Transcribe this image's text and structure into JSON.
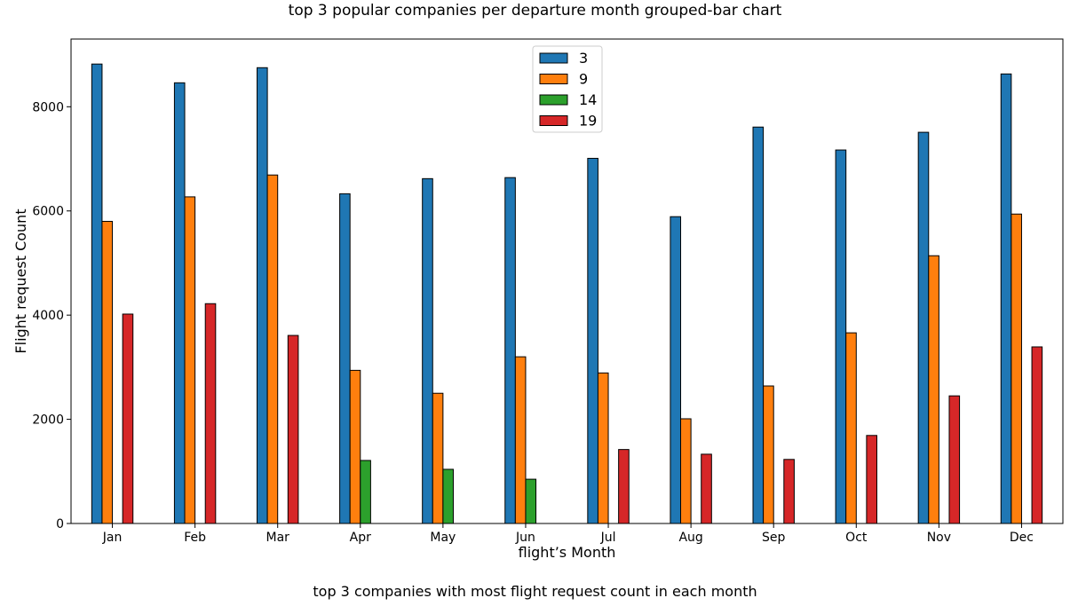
{
  "chart_data": {
    "type": "bar",
    "title": "top 3 popular companies per departure month grouped-bar chart",
    "caption": "top 3 companies with most flight request count in each month",
    "xlabel": "flight’s Month",
    "ylabel": "Flight request Count",
    "ylim": [
      0,
      9300
    ],
    "yticks": [
      "0",
      "2000",
      "4000",
      "6000",
      "8000"
    ],
    "ytick_values": [
      0,
      2000,
      4000,
      6000,
      8000
    ],
    "categories": [
      "Jan",
      "Feb",
      "Mar",
      "Apr",
      "May",
      "Jun",
      "Jul",
      "Aug",
      "Sep",
      "Oct",
      "Nov",
      "Dec"
    ],
    "legend_position": "top-center",
    "grid": false,
    "series": [
      {
        "name": "3",
        "color": "#1f77b4",
        "values": [
          8820,
          8460,
          8750,
          6330,
          6620,
          6640,
          7010,
          5890,
          7610,
          7170,
          7510,
          8630
        ]
      },
      {
        "name": "9",
        "color": "#ff7f0e",
        "values": [
          5800,
          6270,
          6690,
          2940,
          2500,
          3200,
          2890,
          2010,
          2640,
          3660,
          5140,
          5940
        ]
      },
      {
        "name": "14",
        "color": "#2ca02c",
        "values": [
          null,
          null,
          null,
          1210,
          1040,
          850,
          null,
          null,
          null,
          null,
          null,
          null
        ]
      },
      {
        "name": "19",
        "color": "#d62728",
        "values": [
          4020,
          4220,
          3610,
          null,
          null,
          null,
          1420,
          1330,
          1230,
          1690,
          2450,
          3390
        ]
      }
    ]
  }
}
